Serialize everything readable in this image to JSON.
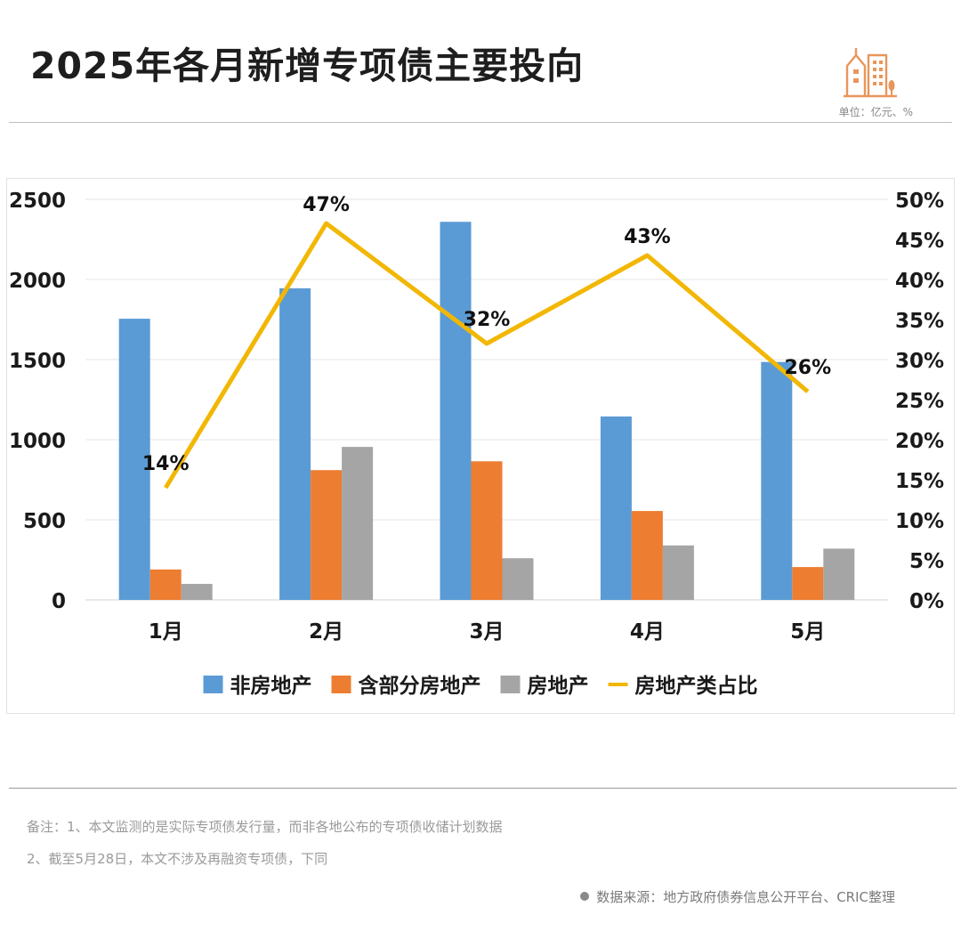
{
  "header": {
    "title": "2025年各月新增专项债主要投向",
    "unit": "单位：亿元、%",
    "logo_icon": "city-buildings-icon",
    "accent_color": "#E8965A"
  },
  "notes": {
    "line1": "备注：1、本文监测的是实际专项债发行量，而非各地公布的专项债收储计划数据",
    "line2": "2、截至5月28日，本文不涉及再融资专项债，下同"
  },
  "source": {
    "text": "数据来源：地方政府债券信息公开平台、CRIC整理"
  },
  "chart_data": {
    "type": "bar",
    "title": "2025年各月新增专项债主要投向",
    "categories": [
      "1月",
      "2月",
      "3月",
      "4月",
      "5月"
    ],
    "series": [
      {
        "name": "非房地产",
        "type": "bar",
        "axis": "left",
        "color": "#5B9BD5",
        "values": [
          1755,
          1945,
          2360,
          1145,
          1485
        ]
      },
      {
        "name": "含部分房地产",
        "type": "bar",
        "axis": "left",
        "color": "#ED7D31",
        "values": [
          190,
          810,
          865,
          555,
          205
        ]
      },
      {
        "name": "房地产",
        "type": "bar",
        "axis": "left",
        "color": "#A5A5A5",
        "values": [
          100,
          955,
          260,
          340,
          320
        ]
      },
      {
        "name": "房地产类占比",
        "type": "line",
        "axis": "right",
        "color": "#F2B705",
        "values": [
          14,
          47,
          32,
          43,
          26
        ],
        "labels": [
          "14%",
          "47%",
          "32%",
          "43%",
          "26%"
        ]
      }
    ],
    "y_left": {
      "min": 0,
      "max": 2500,
      "ticks": [
        "0",
        "500",
        "1000",
        "1500",
        "2000",
        "2500"
      ]
    },
    "y_right": {
      "min": 0,
      "max": 50,
      "ticks": [
        "0%",
        "5%",
        "10%",
        "15%",
        "20%",
        "25%",
        "30%",
        "35%",
        "40%",
        "45%",
        "50%"
      ]
    },
    "legend_position": "bottom",
    "grid": true
  }
}
